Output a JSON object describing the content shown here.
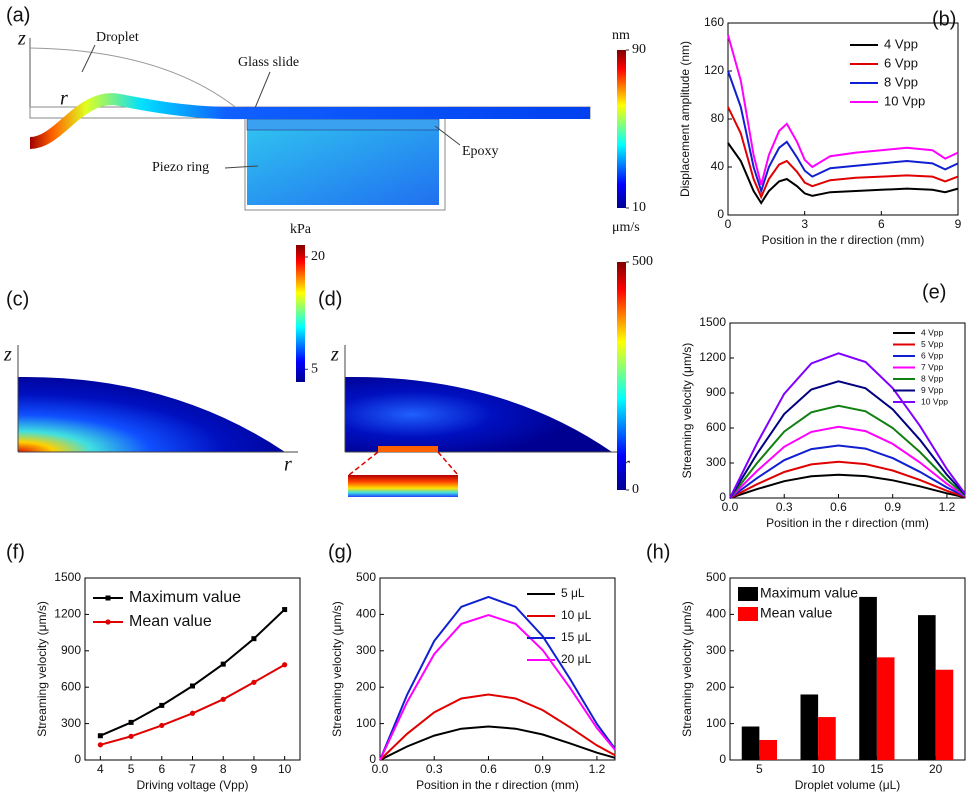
{
  "panel_a": {
    "label": "(a)",
    "axis_z": "z",
    "axis_r": "r",
    "annotations": [
      "Droplet",
      "Glass slide",
      "Epoxy",
      "Piezo ring"
    ],
    "colorbar": {
      "unit": "nm",
      "lim": [
        10,
        90
      ],
      "ticks": [
        10,
        90
      ]
    }
  },
  "panel_c": {
    "label": "(c)",
    "axis_z": "z",
    "axis_r": "r",
    "colorbar": {
      "unit": "kPa",
      "lim": [
        3.3,
        21.6
      ],
      "ticks": [
        5,
        20
      ]
    }
  },
  "panel_d": {
    "label": "(d)",
    "axis_z": "z",
    "axis_r": "r",
    "colorbar": {
      "unit": "μm/s",
      "lim": [
        0,
        500
      ],
      "ticks": [
        0,
        500
      ]
    }
  },
  "chart_data": [
    {
      "type": "line",
      "label": "(b)",
      "xlabel": "Position in the r direction (mm)",
      "ylabel": "Displacement amplitude (nm)",
      "x": [
        0,
        0.5,
        1,
        1.3,
        1.6,
        2,
        2.3,
        2.7,
        3,
        3.3,
        4,
        5,
        6,
        7,
        8,
        8.5,
        9
      ],
      "xlim": [
        0,
        9
      ],
      "xticks": [
        0,
        3,
        6,
        9
      ],
      "ylim": [
        0,
        160
      ],
      "yticks": [
        0,
        40,
        80,
        120,
        160
      ],
      "legend": "upper right",
      "series": [
        {
          "name": "4 Vpp",
          "color": "#000000",
          "values": [
            60,
            45,
            20,
            10,
            20,
            28,
            30,
            24,
            18,
            16,
            19,
            20,
            21,
            22,
            21,
            19,
            22
          ]
        },
        {
          "name": "6 Vpp",
          "color": "#e00000",
          "values": [
            90,
            68,
            30,
            15,
            30,
            42,
            45,
            36,
            27,
            24,
            29,
            31,
            32,
            33,
            32,
            28,
            32
          ]
        },
        {
          "name": "8 Vpp",
          "color": "#1020d0",
          "values": [
            120,
            90,
            40,
            20,
            40,
            56,
            61,
            48,
            37,
            32,
            39,
            41,
            43,
            45,
            43,
            38,
            43
          ]
        },
        {
          "name": "10 Vpp",
          "color": "#ff00ff",
          "values": [
            150,
            112,
            50,
            25,
            50,
            70,
            76,
            61,
            46,
            40,
            49,
            52,
            54,
            56,
            54,
            47,
            52
          ]
        }
      ]
    },
    {
      "type": "line",
      "label": "(e)",
      "xlabel": "Position in the r direction (mm)",
      "ylabel": "Streaming velocity (μm/s)",
      "x": [
        0,
        0.15,
        0.3,
        0.45,
        0.6,
        0.75,
        0.9,
        1.05,
        1.2,
        1.3
      ],
      "xlim": [
        0,
        1.3
      ],
      "xticks": [
        {
          "value": 0,
          "label": "0.0"
        },
        0.3,
        0.6,
        0.9,
        1.2
      ],
      "ylim": [
        0,
        1500
      ],
      "yticks": [
        0,
        300,
        600,
        900,
        1200,
        1500
      ],
      "legend": "upper right",
      "series": [
        {
          "name": "4 Vpp",
          "color": "#000000",
          "values": [
            0,
            76,
            144,
            186,
            200,
            188,
            152,
            100,
            40,
            6
          ]
        },
        {
          "name": "5 Vpp",
          "color": "#e00000",
          "values": [
            0,
            118,
            223,
            288,
            310,
            291,
            236,
            155,
            62,
            9
          ]
        },
        {
          "name": "6 Vpp",
          "color": "#1020d0",
          "values": [
            0,
            171,
            324,
            419,
            450,
            423,
            342,
            225,
            90,
            14
          ]
        },
        {
          "name": "7 Vpp",
          "color": "#ff00ff",
          "values": [
            0,
            232,
            439,
            567,
            610,
            573,
            464,
            305,
            122,
            18
          ]
        },
        {
          "name": "8 Vpp",
          "color": "#108010",
          "values": [
            0,
            300,
            569,
            735,
            790,
            743,
            600,
            395,
            158,
            24
          ]
        },
        {
          "name": "9 Vpp",
          "color": "#000080",
          "values": [
            0,
            380,
            720,
            930,
            1000,
            940,
            760,
            500,
            200,
            30
          ]
        },
        {
          "name": "10 Vpp",
          "color": "#8000ff",
          "values": [
            0,
            471,
            893,
            1153,
            1240,
            1166,
            942,
            620,
            248,
            37
          ]
        }
      ]
    },
    {
      "type": "line",
      "label": "(f)",
      "xlabel": "Driving voltage (Vpp)",
      "ylabel": "Streaming velocity (μm/s)",
      "markers": true,
      "x": [
        4,
        5,
        6,
        7,
        8,
        9,
        10
      ],
      "xlim": [
        3.5,
        10.5
      ],
      "xticks": [
        4,
        5,
        6,
        7,
        8,
        9,
        10
      ],
      "ylim": [
        0,
        1500
      ],
      "yticks": [
        0,
        300,
        600,
        900,
        1200,
        1500
      ],
      "legend": "upper left",
      "series": [
        {
          "name": "Maximum value",
          "color": "#000000",
          "values": [
            200,
            310,
            450,
            610,
            790,
            1000,
            1240
          ]
        },
        {
          "name": "Mean value",
          "color": "#e00000",
          "values": [
            125,
            195,
            285,
            385,
            500,
            640,
            785
          ]
        }
      ]
    },
    {
      "type": "line",
      "label": "(g)",
      "xlabel": "Position in the r direction (mm)",
      "ylabel": "Streaming velocity (μm/s)",
      "x": [
        0,
        0.15,
        0.3,
        0.45,
        0.6,
        0.75,
        0.9,
        1.05,
        1.2,
        1.3
      ],
      "xlim": [
        0,
        1.3
      ],
      "xticks": [
        {
          "value": 0,
          "label": "0.0"
        },
        0.3,
        0.6,
        0.9,
        1.2
      ],
      "ylim": [
        0,
        500
      ],
      "yticks": [
        0,
        100,
        200,
        300,
        400,
        500
      ],
      "legend": "upper right",
      "series": [
        {
          "name": "5 μL",
          "color": "#000000",
          "values": [
            0,
            37,
            67,
            86,
            92,
            86,
            70,
            46,
            20,
            6
          ]
        },
        {
          "name": "10 μL",
          "color": "#e00000",
          "values": [
            0,
            72,
            131,
            169,
            180,
            169,
            137,
            90,
            40,
            13
          ]
        },
        {
          "name": "15 μL",
          "color": "#1020d0",
          "values": [
            0,
            179,
            327,
            421,
            448,
            421,
            340,
            224,
            99,
            31
          ]
        },
        {
          "name": "20 μL",
          "color": "#ff00ff",
          "values": [
            0,
            159,
            291,
            374,
            398,
            374,
            302,
            199,
            88,
            28
          ]
        }
      ]
    },
    {
      "type": "bar",
      "label": "(h)",
      "xlabel": "Droplet volume (μL)",
      "ylabel": "Streaming velocity (μm/s)",
      "categories": [
        "5",
        "10",
        "15",
        "20"
      ],
      "ylim": [
        0,
        500
      ],
      "yticks": [
        0,
        100,
        200,
        300,
        400,
        500
      ],
      "legend": "upper left",
      "series": [
        {
          "name": "Maximum value",
          "color": "#000000",
          "values": [
            92,
            180,
            448,
            398
          ]
        },
        {
          "name": "Mean value",
          "color": "#ff0000",
          "values": [
            55,
            118,
            282,
            248
          ]
        }
      ]
    }
  ]
}
